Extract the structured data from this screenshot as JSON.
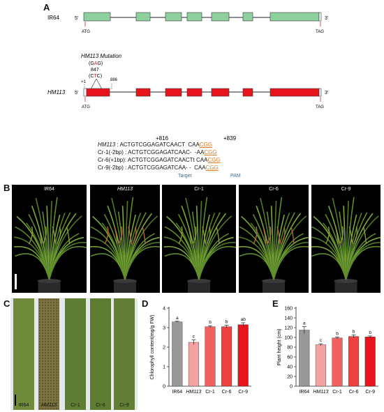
{
  "panels": {
    "A": "A",
    "B": "B",
    "C": "C",
    "D": "D",
    "E": "E"
  },
  "gene": {
    "wt_name": "IR64",
    "mut_name": "HM113",
    "five_prime": "5'",
    "three_prime": "3'",
    "atg": "ATG",
    "tag": "TAG",
    "mutation_title": "HM113 Mutation",
    "codon_wt_open": "(G",
    "codon_wt_hl": "A",
    "codon_wt_close": "G)",
    "pos": "847",
    "codon_mut_open": "(C",
    "codon_mut_hl": "T",
    "codon_mut_close": "C)",
    "plus1": "+1",
    "pos886": "886",
    "wt_color": "#8fd19e",
    "mut_color": "#e8141c",
    "highlight_color": "#d42020"
  },
  "alignment": {
    "pos_left": "+816",
    "pos_right": "+839",
    "rows": [
      {
        "name": "HM113",
        "sep": " : ",
        "seq": "ACTGTCGGAGATCAACT",
        "gap": "  CAA",
        "pam": "CGG"
      },
      {
        "name": "Cr-1(-2bp)",
        "sep": " : ",
        "seq": "ACTGTCGGAGATCAAC-",
        "gap": "  -AA",
        "pam": "CGG"
      },
      {
        "name": "Cr-6(+1bp)",
        "sep": ": ",
        "seq": "ACTGTCGGAGATCAACT",
        "gap": "t CAA",
        "pam": "CGG"
      },
      {
        "name": "Cr-9(-2bp)",
        "sep": " : ",
        "seq": "ACTGTCGGAGATCAA-",
        "gap": " -  CAA",
        "pam": "CGG"
      }
    ],
    "target_label": "Target",
    "pam_label": "PAM",
    "label_color": "#2c6fa8",
    "pam_color": "#e07b20"
  },
  "plants": [
    "IR64",
    "HM113",
    "Cr-1",
    "Cr-6",
    "Cr-9"
  ],
  "leaves": [
    "IR64",
    "HM113",
    "Cr-1",
    "Cr-6",
    "Cr-9"
  ],
  "chart_data": [
    {
      "type": "bar",
      "panel": "D",
      "categories": [
        "IR64",
        "HM113",
        "Cr-1",
        "Cr-6",
        "Cr-9"
      ],
      "values": [
        3.3,
        2.25,
        3.05,
        3.05,
        3.15
      ],
      "errors": [
        0.03,
        0.12,
        0.05,
        0.07,
        0.1
      ],
      "letters": [
        "a",
        "c",
        "b",
        "b",
        "ab"
      ],
      "colors": [
        "#999999",
        "#f4a3a3",
        "#f26060",
        "#f04040",
        "#e8141c"
      ],
      "ylabel": "Chlorophyll content(mg/g FW)",
      "ylim": [
        0,
        4
      ],
      "yticks": [
        "0",
        "1",
        "2",
        "3",
        "4"
      ]
    },
    {
      "type": "bar",
      "panel": "E",
      "categories": [
        "IR64",
        "HM113",
        "Cr-1",
        "Cr-6",
        "Cr-9"
      ],
      "values": [
        115,
        85,
        99,
        102,
        101
      ],
      "errors": [
        7,
        2,
        2,
        3,
        2
      ],
      "letters": [
        "a",
        "c",
        "b",
        "b",
        "b"
      ],
      "colors": [
        "#999999",
        "#f4a3a3",
        "#f26060",
        "#f04040",
        "#e8141c"
      ],
      "ylabel": "Plant height (cm)",
      "ylim": [
        0,
        160
      ],
      "yticks": [
        "0",
        "20",
        "40",
        "60",
        "80",
        "100",
        "120",
        "140",
        "160"
      ]
    }
  ]
}
